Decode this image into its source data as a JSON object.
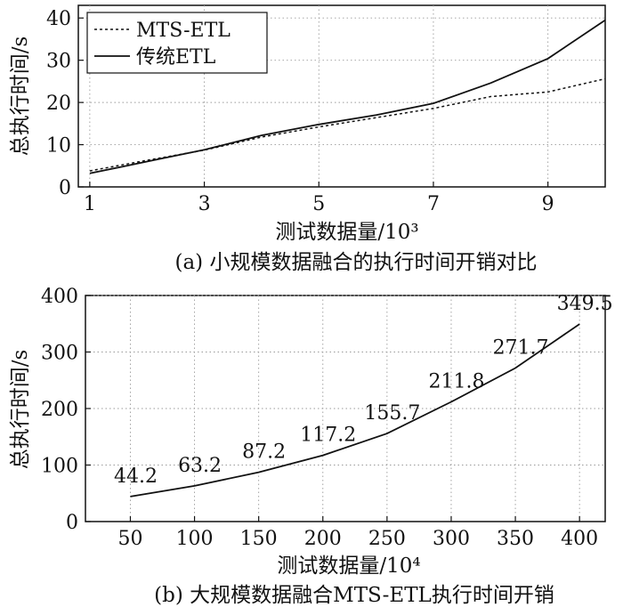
{
  "chart_data": [
    {
      "type": "line",
      "x": [
        1,
        2,
        3,
        4,
        5,
        6,
        7,
        8,
        9,
        10
      ],
      "xticks": [
        1,
        3,
        5,
        7,
        9
      ],
      "yticks": [
        0,
        10,
        20,
        30,
        40
      ],
      "xlim": [
        0.8,
        10
      ],
      "ylim": [
        0,
        43
      ],
      "xlabel": "测试数据量/10³",
      "ylabel": "总执行时间/s",
      "caption": "(a) 小规模数据融合的执行时间开销对比",
      "legend_position": "top-left",
      "series": [
        {
          "name": "MTS-ETL",
          "style": "dashed",
          "color": "#111111",
          "values": [
            3.8,
            6.3,
            8.7,
            11.8,
            14.2,
            16.4,
            18.6,
            21.4,
            22.5,
            25.6
          ]
        },
        {
          "name": "传统ETL",
          "style": "solid",
          "color": "#111111",
          "values": [
            3.2,
            6.0,
            8.8,
            12.2,
            14.8,
            17.0,
            19.8,
            24.6,
            30.4,
            39.5
          ]
        }
      ]
    },
    {
      "type": "line",
      "x": [
        50,
        100,
        150,
        200,
        250,
        300,
        350,
        400
      ],
      "xticks": [
        50,
        100,
        150,
        200,
        250,
        300,
        350,
        400
      ],
      "yticks": [
        0,
        100,
        200,
        300,
        400
      ],
      "xlim": [
        15,
        420
      ],
      "ylim": [
        0,
        400
      ],
      "xlabel": "测试数据量/10⁴",
      "ylabel": "总执行时间/s",
      "caption": "(b) 大规模数据融合MTS-ETL执行时间开销",
      "series": [
        {
          "style": "solid",
          "color": "#111111",
          "values": [
            44.2,
            63.2,
            87.2,
            117.2,
            155.7,
            211.8,
            271.7,
            349.5
          ],
          "labels": [
            "44.2",
            "63.2",
            "87.2",
            "117.2",
            "155.7",
            "211.8",
            "271.7",
            "349.5"
          ]
        }
      ]
    }
  ]
}
